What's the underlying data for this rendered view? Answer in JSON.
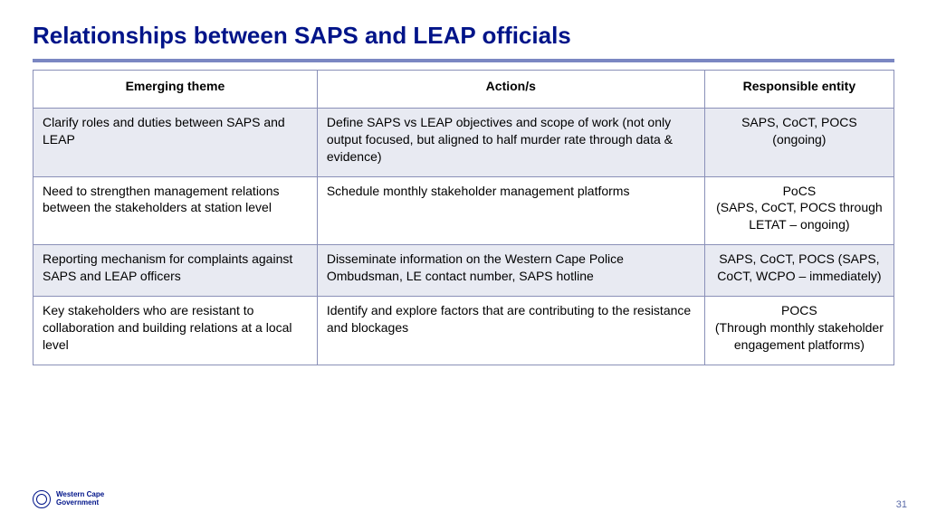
{
  "title": "Relationships between SAPS and LEAP officials",
  "columns": [
    "Emerging theme",
    "Action/s",
    "Responsible entity"
  ],
  "rows": [
    {
      "shaded": true,
      "theme": "Clarify roles and duties between SAPS and LEAP",
      "action": "Define SAPS vs LEAP objectives and scope of work (not only output focused, but aligned to half murder rate through data & evidence)",
      "entity": "SAPS, CoCT, POCS (ongoing)"
    },
    {
      "shaded": false,
      "theme": "Need to strengthen management relations between the stakeholders at station level",
      "action": "Schedule monthly stakeholder management platforms",
      "entity": "PoCS\n(SAPS, CoCT, POCS through LETAT – ongoing)"
    },
    {
      "shaded": true,
      "theme": "Reporting mechanism for complaints against SAPS and LEAP officers",
      "action": "Disseminate information on the Western Cape Police Ombudsman, LE contact number, SAPS hotline",
      "entity": "SAPS, CoCT, POCS (SAPS, CoCT, WCPO – immediately)"
    },
    {
      "shaded": false,
      "theme": "Key stakeholders who are resistant to collaboration and building relations at a local level",
      "action": "Identify and explore factors that are contributing to the resistance and blockages",
      "entity": "POCS\n(Through monthly stakeholder engagement platforms)"
    }
  ],
  "footer": {
    "org_line1": "Western Cape",
    "org_line2": "Government"
  },
  "page_number": "31",
  "colors": {
    "title": "#001489",
    "rule": "#7b87c2",
    "border": "#8a90b8",
    "shaded_bg": "#e8eaf2",
    "plain_bg": "#ffffff"
  },
  "fontsizes": {
    "title": 26,
    "cell": 14,
    "footer": 8,
    "page_num": 11
  },
  "column_widths_pct": [
    33,
    45,
    22
  ]
}
